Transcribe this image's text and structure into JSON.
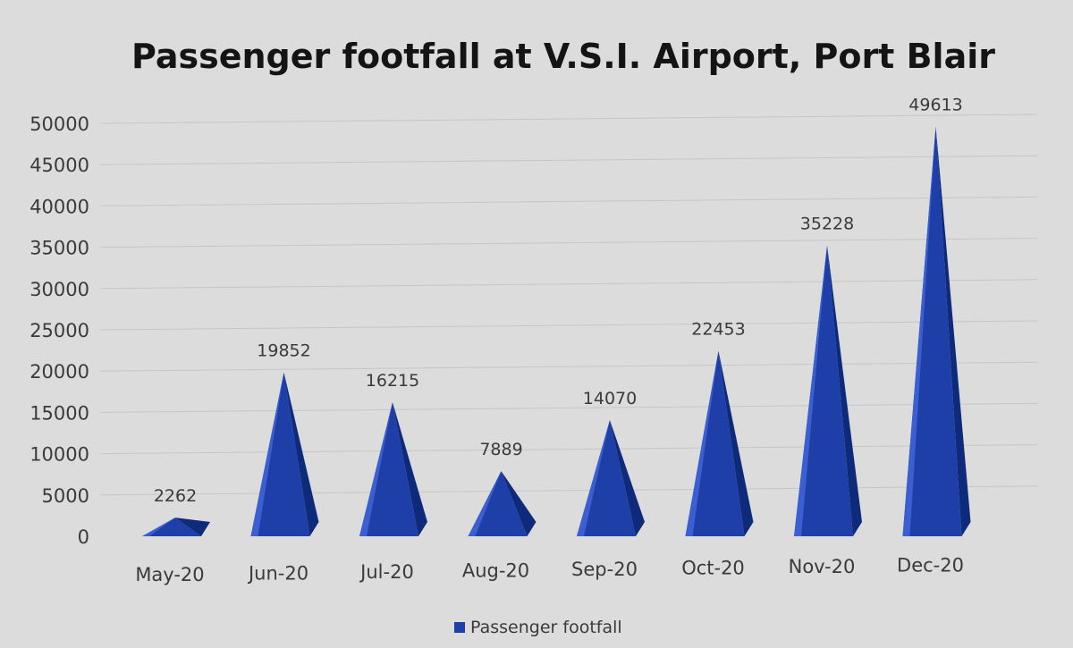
{
  "chart_data": {
    "type": "bar",
    "title": "Passenger footfall at V.S.I. Airport, Port Blair",
    "categories": [
      "May-20",
      "Jun-20",
      "Jul-20",
      "Aug-20",
      "Sep-20",
      "Oct-20",
      "Nov-20",
      "Dec-20"
    ],
    "series": [
      {
        "name": "Passenger footfall",
        "values": [
          2262,
          19852,
          16215,
          7889,
          14070,
          22453,
          35228,
          49613
        ],
        "color": "#1f3fa8"
      }
    ],
    "y_ticks": [
      "0",
      "5000",
      "10000",
      "15000",
      "20000",
      "25000",
      "30000",
      "35000",
      "40000",
      "45000",
      "50000"
    ],
    "ylim": [
      0,
      50000
    ],
    "grid": true,
    "legend_position": "bottom",
    "mark_shape": "pyramid"
  }
}
